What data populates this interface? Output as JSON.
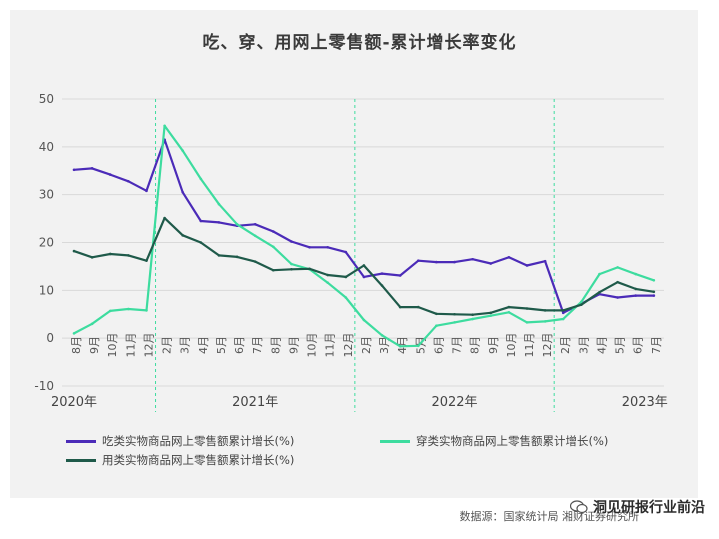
{
  "chart_data": {
    "type": "line",
    "title": "吃、穿、用网上零售额-累计增长率变化",
    "xlabel": "",
    "ylabel": "",
    "ylim": [
      -10,
      50
    ],
    "yticks": [
      -10,
      0,
      10,
      20,
      30,
      40,
      50
    ],
    "grid": true,
    "legend_position": "bottom",
    "categories": [
      "8月",
      "9月",
      "10月",
      "11月",
      "12月",
      "2月",
      "3月",
      "4月",
      "5月",
      "6月",
      "7月",
      "8月",
      "9月",
      "10月",
      "11月",
      "12月",
      "2月",
      "3月",
      "4月",
      "5月",
      "6月",
      "7月",
      "8月",
      "9月",
      "10月",
      "11月",
      "12月",
      "2月",
      "3月",
      "4月",
      "5月",
      "6月",
      "7月"
    ],
    "year_labels": [
      {
        "label": "2020年",
        "index": 0
      },
      {
        "label": "2021年",
        "index": 10
      },
      {
        "label": "2022年",
        "index": 21
      },
      {
        "label": "2023年",
        "index": 31.5
      }
    ],
    "year_dividers": [
      4.5,
      15.5,
      26.5
    ],
    "series": [
      {
        "name": "吃类实物商品网上零售额累计增长(%)",
        "color": "#4b2bb8",
        "values": [
          35.2,
          35.5,
          34.2,
          32.8,
          30.8,
          41.5,
          30.5,
          24.5,
          24.2,
          23.5,
          23.8,
          22.3,
          20.2,
          19.0,
          19.0,
          18.0,
          12.8,
          13.5,
          13.1,
          16.2,
          15.9,
          15.9,
          16.5,
          15.6,
          16.9,
          15.2,
          16.1,
          5.3,
          7.2,
          9.2,
          8.5,
          8.9,
          8.9
        ]
      },
      {
        "name": "穿类实物商品网上零售额累计增长(%)",
        "color": "#3ddc9f",
        "values": [
          1.0,
          3.0,
          5.7,
          6.1,
          5.8,
          44.4,
          39.2,
          33.3,
          28.0,
          23.8,
          21.4,
          19.1,
          15.5,
          14.4,
          11.6,
          8.5,
          3.8,
          0.6,
          -1.7,
          -1.6,
          2.6,
          3.3,
          4.0,
          4.7,
          5.4,
          3.3,
          3.5,
          4.0,
          7.6,
          13.4,
          14.8,
          13.4,
          12.1
        ]
      },
      {
        "name": "用类实物商品网上零售额累计增长(%)",
        "color": "#1f5a4a",
        "values": [
          18.2,
          16.9,
          17.6,
          17.3,
          16.2,
          25.1,
          21.5,
          20.0,
          17.3,
          17.0,
          16.0,
          14.2,
          14.4,
          14.5,
          13.2,
          12.8,
          15.2,
          11.0,
          6.5,
          6.5,
          5.1,
          5.0,
          4.9,
          5.3,
          6.5,
          6.2,
          5.8,
          5.8,
          7.0,
          9.6,
          11.7,
          10.3,
          9.7
        ]
      }
    ]
  },
  "source_text": "数据源：国家统计局  湘财证券研究所",
  "watermark_text": "洞见研报行业前沿"
}
